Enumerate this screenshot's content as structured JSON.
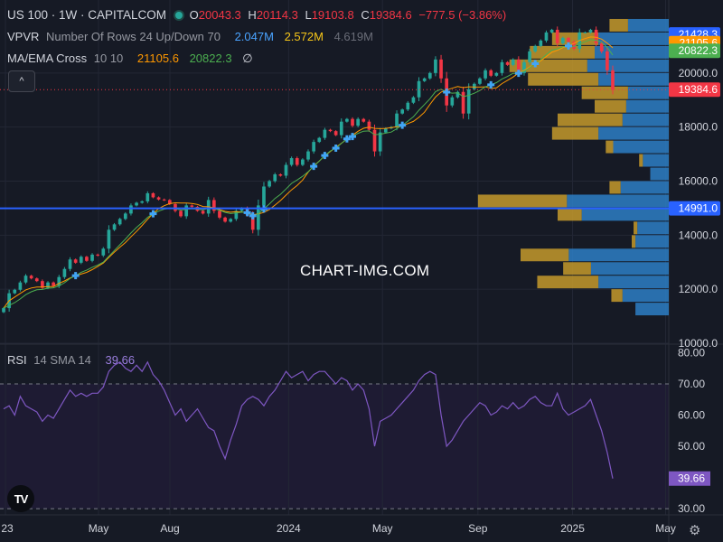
{
  "header": {
    "symbol": "US 100 · 1W · CAPITALCOM",
    "ohlc": {
      "o_label": "O",
      "o": "20043.3",
      "h_label": "H",
      "h": "20114.3",
      "l_label": "L",
      "l": "19103.8",
      "c_label": "C",
      "c": "19384.6",
      "change": "−777.5 (−3.86%)"
    }
  },
  "indicators": {
    "vpvr": {
      "name": "VPVR",
      "params": "Number Of Rows 24 Up/Down 70",
      "up": "2.047M",
      "down": "2.572M",
      "total": "4.619M"
    },
    "ma": {
      "name": "MA/EMA Cross",
      "params": "10 10",
      "ma_value": "21105.6",
      "ema_value": "20822.3",
      "hide_icon": "∅"
    },
    "rsi": {
      "name": "RSI",
      "params": "14 SMA 14",
      "value": "39.66"
    }
  },
  "collapse_icon": "^",
  "watermark": "CHART-IMG.COM",
  "logo_text": "TV",
  "gear_icon": "⚙",
  "colors": {
    "background": "#161a25",
    "up": "#26a69a",
    "down": "#f23645",
    "ma": "#ff9800",
    "ema": "#4caf50",
    "rsi": "#7e57c2",
    "hline": "#2962ff",
    "vp_up": "#2d7fc5",
    "vp_down": "#c49a2c"
  },
  "chart_data": {
    "type": "candlestick",
    "title": "US 100 · 1W · CAPITALCOM",
    "price_axis": {
      "ticks": [
        "20000.0",
        "18000.0",
        "16000.0",
        "14000.0",
        "12000.0",
        "10000.0"
      ],
      "range": [
        10000,
        22300
      ]
    },
    "time_axis": {
      "labels": [
        "23",
        "May",
        "Aug",
        "2024",
        "May",
        "Sep",
        "2025",
        "May"
      ],
      "label_dates": [
        "2023-01-01",
        "2023-05-01",
        "2023-08-01",
        "2024-01-01",
        "2024-05-01",
        "2024-09-01",
        "2025-01-01",
        "2025-05-01"
      ],
      "range": [
        "2022-12-25",
        "2025-05-05"
      ]
    },
    "price_labels": [
      {
        "text": "21428.3",
        "value": 21428.3,
        "color": "#2962ff",
        "text_color": "#ffffff"
      },
      {
        "text": "21105.6",
        "value": 21105.6,
        "color": "#ff9800",
        "text_color": "#ffffff"
      },
      {
        "text": "20822.3",
        "value": 20822.3,
        "color": "#4caf50",
        "text_color": "#ffffff"
      },
      {
        "text": "19384.6",
        "value": 19384.6,
        "color": "#f23645",
        "text_color": "#ffffff"
      },
      {
        "text": "14991.0",
        "value": 14991.0,
        "color": "#2962ff",
        "text_color": "#ffffff"
      }
    ],
    "horizontal_line": 14991.0,
    "closes": [
      11300,
      11850,
      11980,
      12250,
      12500,
      12400,
      12300,
      12050,
      12250,
      12120,
      12450,
      12750,
      13100,
      12980,
      13200,
      13050,
      13280,
      13250,
      13500,
      14200,
      14400,
      14600,
      14800,
      15100,
      15200,
      15250,
      15550,
      15400,
      15320,
      15300,
      15150,
      14900,
      14700,
      15100,
      15050,
      14900,
      14800,
      15300,
      14900,
      14650,
      14500,
      14600,
      14900,
      15000,
      14750,
      14200,
      15100,
      15800,
      16000,
      16250,
      16200,
      16600,
      16850,
      16600,
      16800,
      17100,
      17450,
      17600,
      17900,
      17850,
      17700,
      18200,
      18300,
      18050,
      18300,
      18200,
      17900,
      17100,
      17800,
      17950,
      18000,
      18500,
      18650,
      18900,
      19100,
      19700,
      19800,
      20000,
      20500,
      19800,
      18800,
      19100,
      19300,
      18500,
      19400,
      19600,
      19800,
      20100,
      19900,
      20000,
      20400,
      20300,
      20500,
      20000,
      20400,
      20800,
      21000,
      21200,
      21500,
      21600,
      21100,
      21300,
      21150,
      20900,
      21500,
      21500,
      21600,
      21100,
      20800,
      20100,
      19384.6
    ],
    "volume_profile": [
      {
        "price_from": 11000,
        "price_to": 11500,
        "up": 0.18,
        "down": 0.0
      },
      {
        "price_from": 11500,
        "price_to": 12000,
        "up": 0.25,
        "down": 0.06
      },
      {
        "price_from": 12000,
        "price_to": 12500,
        "up": 0.38,
        "down": 0.33
      },
      {
        "price_from": 12500,
        "price_to": 13000,
        "up": 0.42,
        "down": 0.15
      },
      {
        "price_from": 13000,
        "price_to": 13500,
        "up": 0.54,
        "down": 0.26
      },
      {
        "price_from": 13500,
        "price_to": 14000,
        "up": 0.18,
        "down": 0.02
      },
      {
        "price_from": 14000,
        "price_to": 14500,
        "up": 0.17,
        "down": 0.02
      },
      {
        "price_from": 14500,
        "price_to": 15000,
        "up": 0.47,
        "down": 0.13
      },
      {
        "price_from": 15000,
        "price_to": 15500,
        "up": 0.55,
        "down": 0.48
      },
      {
        "price_from": 15500,
        "price_to": 16000,
        "up": 0.26,
        "down": 0.06
      },
      {
        "price_from": 16000,
        "price_to": 16500,
        "up": 0.1,
        "down": 0.0
      },
      {
        "price_from": 16500,
        "price_to": 17000,
        "up": 0.14,
        "down": 0.02
      },
      {
        "price_from": 17000,
        "price_to": 17500,
        "up": 0.3,
        "down": 0.04
      },
      {
        "price_from": 17500,
        "price_to": 18000,
        "up": 0.38,
        "down": 0.25
      },
      {
        "price_from": 18000,
        "price_to": 18500,
        "up": 0.25,
        "down": 0.35
      },
      {
        "price_from": 18500,
        "price_to": 19000,
        "up": 0.23,
        "down": 0.17
      },
      {
        "price_from": 19000,
        "price_to": 19500,
        "up": 0.22,
        "down": 0.25
      },
      {
        "price_from": 19500,
        "price_to": 20000,
        "up": 0.38,
        "down": 0.38
      },
      {
        "price_from": 20000,
        "price_to": 20500,
        "up": 0.44,
        "down": 0.42
      },
      {
        "price_from": 20500,
        "price_to": 21000,
        "up": 0.4,
        "down": 0.35
      },
      {
        "price_from": 21000,
        "price_to": 21500,
        "up": 0.38,
        "down": 0.25
      },
      {
        "price_from": 21500,
        "price_to": 22000,
        "up": 0.22,
        "down": 0.1
      }
    ],
    "rsi": {
      "ticks": [
        "80.00",
        "70.00",
        "60.00",
        "50.00",
        "30.00"
      ],
      "range": [
        28,
        81
      ],
      "upper_band": 70,
      "lower_band": 30,
      "current_label": "39.66",
      "values": [
        62,
        63,
        60,
        66,
        63,
        62,
        61,
        58,
        60,
        59,
        62,
        65,
        68,
        66,
        67,
        66,
        67,
        67,
        69,
        74,
        76,
        77,
        75,
        74,
        76,
        74,
        77,
        73,
        71,
        68,
        64,
        60,
        62,
        58,
        60,
        62,
        59,
        56,
        55,
        50,
        46,
        52,
        57,
        63,
        65,
        66,
        65,
        63,
        66,
        68,
        71,
        74,
        72,
        73,
        74,
        71,
        73,
        74,
        74,
        72,
        70,
        72,
        71,
        68,
        70,
        68,
        62,
        50,
        58,
        59,
        60,
        62,
        64,
        66,
        68,
        71,
        73,
        74,
        73,
        60,
        50,
        52,
        55,
        58,
        60,
        62,
        64,
        63,
        60,
        61,
        63,
        62,
        64,
        62,
        63,
        65,
        66,
        64,
        63,
        63,
        67,
        62,
        60,
        61,
        62,
        63,
        65,
        60,
        55,
        48,
        39.66
      ]
    }
  }
}
